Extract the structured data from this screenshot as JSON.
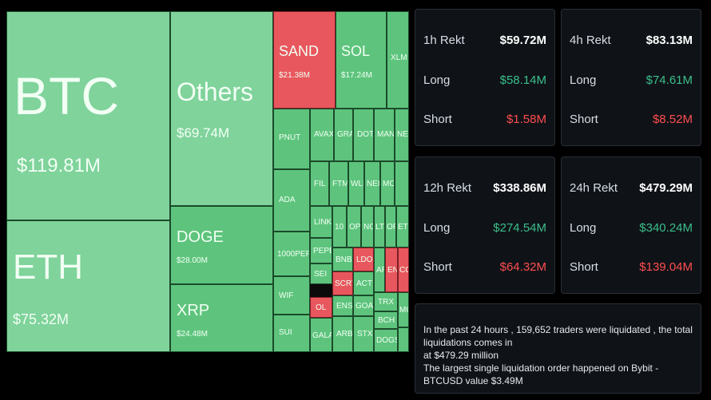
{
  "treemap": {
    "tiles": {
      "btc": {
        "symbol": "BTC",
        "value": "$119.81M"
      },
      "eth": {
        "symbol": "ETH",
        "value": "$75.32M"
      },
      "others": {
        "symbol": "Others",
        "value": "$69.74M"
      },
      "doge": {
        "symbol": "DOGE",
        "value": "$28.00M"
      },
      "xrp": {
        "symbol": "XRP",
        "value": "$24.48M"
      },
      "sand": {
        "symbol": "SAND",
        "value": "$21.38M"
      },
      "sol": {
        "symbol": "SOL",
        "value": "$17.24M"
      },
      "xlm": {
        "symbol": "XLM"
      },
      "pnut": {
        "symbol": "PNUT"
      },
      "avax": {
        "symbol": "AVAX"
      },
      "gras": {
        "symbol": "GRAS"
      },
      "dot": {
        "symbol": "DOT"
      },
      "man": {
        "symbol": "MAN"
      },
      "near": {
        "symbol": "NEA"
      },
      "ada": {
        "symbol": "ADA"
      },
      "fil": {
        "symbol": "FIL"
      },
      "ftm": {
        "symbol": "FTM"
      },
      "wld": {
        "symbol": "WLD"
      },
      "nei": {
        "symbol": "NEI"
      },
      "mo": {
        "symbol": "MO"
      },
      "link": {
        "symbol": "LINK"
      },
      "tenk": {
        "symbol": "10"
      },
      "op": {
        "symbol": "OP"
      },
      "nc": {
        "symbol": "NC"
      },
      "lt": {
        "symbol": "LT"
      },
      "of": {
        "symbol": "OF"
      },
      "et": {
        "symbol": "ET"
      },
      "pepe": {
        "symbol": "PEPE"
      },
      "k1000pepe": {
        "symbol": "1000PEPE"
      },
      "bnb": {
        "symbol": "BNB"
      },
      "ldo": {
        "symbol": "LDO"
      },
      "ar": {
        "symbol": "AR"
      },
      "en": {
        "symbol": "EN"
      },
      "co": {
        "symbol": "CO"
      },
      "sei": {
        "symbol": "SEI"
      },
      "scrt": {
        "symbol": "SCRT"
      },
      "act": {
        "symbol": "ACT"
      },
      "wif": {
        "symbol": "WIF"
      },
      "ol": {
        "symbol": "OL"
      },
      "ens": {
        "symbol": "ENS"
      },
      "goat": {
        "symbol": "GOAT"
      },
      "trx": {
        "symbol": "TRX"
      },
      "mo2": {
        "symbol": "MC"
      },
      "bch": {
        "symbol": "BCH"
      },
      "sui": {
        "symbol": "SUI"
      },
      "gala": {
        "symbol": "GALA"
      },
      "arb": {
        "symbol": "ARB"
      },
      "stx": {
        "symbol": "STX"
      },
      "dogs": {
        "symbol": "DOGS"
      }
    }
  },
  "stats": {
    "h1": {
      "title": "1h Rekt",
      "total": "$59.72M",
      "long_label": "Long",
      "long": "$58.14M",
      "short_label": "Short",
      "short": "$1.58M"
    },
    "h4": {
      "title": "4h Rekt",
      "total": "$83.13M",
      "long_label": "Long",
      "long": "$74.61M",
      "short_label": "Short",
      "short": "$8.52M"
    },
    "h12": {
      "title": "12h Rekt",
      "total": "$338.86M",
      "long_label": "Long",
      "long": "$274.54M",
      "short_label": "Short",
      "short": "$64.32M"
    },
    "h24": {
      "title": "24h Rekt",
      "total": "$479.29M",
      "long_label": "Long",
      "long": "$340.24M",
      "short_label": "Short",
      "short": "$139.04M"
    }
  },
  "summary": {
    "line1": "In the past 24 hours , 159,652 traders were liquidated , the total liquidations comes in",
    "line2": "at $479.29 million",
    "line3": "The largest single liquidation order happened on Bybit - BTCUSD value $3.49M"
  },
  "colors": {
    "positive": "#3bbf8a",
    "negative": "#ff4d4f",
    "tile_green": "#5ec47d",
    "tile_red": "#e8575d"
  }
}
